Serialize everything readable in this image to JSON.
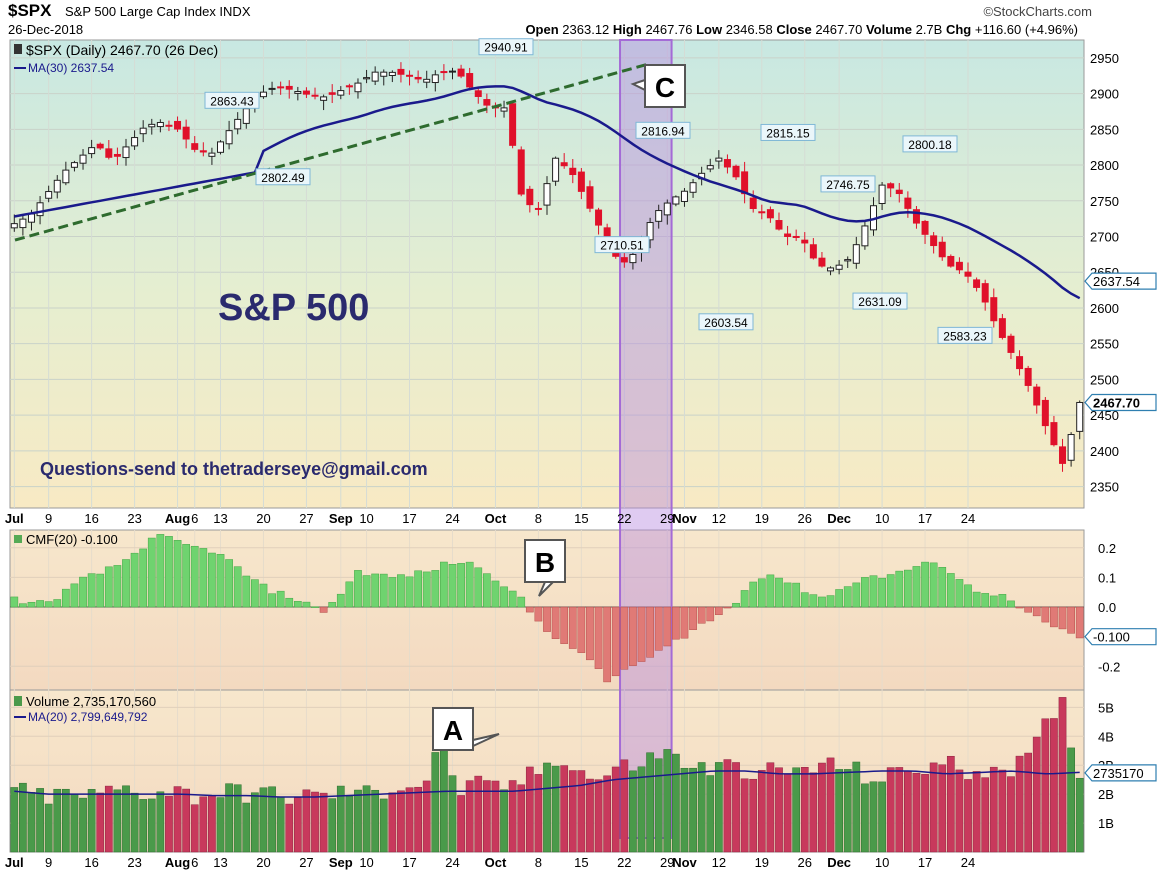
{
  "header": {
    "symbol": "$SPX",
    "name": "S&P 500 Large Cap Index INDX",
    "brand": "©StockCharts.com",
    "date": "26-Dec-2018",
    "open_label": "Open",
    "open": "2363.12",
    "high_label": "High",
    "high": "2467.76",
    "low_label": "Low",
    "low": "2346.58",
    "close_label": "Close",
    "close": "2467.70",
    "volume_label": "Volume",
    "volume": "2.7B",
    "chg_label": "Chg",
    "chg": "+116.60 (+4.96%)"
  },
  "annotations": {
    "big_title": "S&P 500",
    "contact": "Questions-send to thetraderseye@gmail.com",
    "label_a": "A",
    "label_b": "B",
    "label_c": "C"
  },
  "chart_data": [
    {
      "type": "candlestick",
      "legend": [
        "$SPX (Daily) 2467.70 (26 Dec)",
        "MA(30) 2637.54"
      ],
      "ylim": [
        2320,
        2975
      ],
      "y_ticks": [
        2350,
        2400,
        2450,
        2500,
        2550,
        2600,
        2650,
        2700,
        2750,
        2800,
        2850,
        2900,
        2950
      ],
      "x_tick_labels": [
        "Jul",
        "9",
        "16",
        "23",
        "Aug",
        "6",
        "13",
        "20",
        "27",
        "Sep",
        "10",
        "17",
        "24",
        "Oct",
        "8",
        "15",
        "22",
        "29",
        "Nov",
        "12",
        "19",
        "26",
        "Dec",
        "10",
        "17",
        "24"
      ],
      "last_price_tag": "2467.70",
      "ma_tag": "2637.54",
      "price_labels": [
        {
          "text": "2863.43",
          "value": 2863.43
        },
        {
          "text": "2802.49",
          "value": 2802.49
        },
        {
          "text": "2940.91",
          "value": 2940.91
        },
        {
          "text": "2710.51",
          "value": 2710.51
        },
        {
          "text": "2816.94",
          "value": 2816.94
        },
        {
          "text": "2603.54",
          "value": 2603.54
        },
        {
          "text": "2815.15",
          "value": 2815.15
        },
        {
          "text": "2746.75",
          "value": 2746.75
        },
        {
          "text": "2631.09",
          "value": 2631.09
        },
        {
          "text": "2800.18",
          "value": 2800.18
        },
        {
          "text": "2583.23",
          "value": 2583.23
        }
      ],
      "close_anchors": [
        2718,
        2730,
        2760,
        2790,
        2810,
        2830,
        2805,
        2830,
        2855,
        2860,
        2850,
        2822,
        2815,
        2845,
        2875,
        2900,
        2910,
        2905,
        2898,
        2895,
        2905,
        2915,
        2930,
        2930,
        2925,
        2918,
        2930,
        2932,
        2903,
        2880,
        2880,
        2750,
        2738,
        2810,
        2790,
        2745,
        2700,
        2660,
        2680,
        2730,
        2750,
        2765,
        2790,
        2810,
        2785,
        2740,
        2730,
        2700,
        2700,
        2660,
        2655,
        2670,
        2720,
        2775,
        2760,
        2720,
        2690,
        2660,
        2650,
        2620,
        2570,
        2530,
        2485,
        2430,
        2380,
        2470
      ]
    },
    {
      "type": "bar",
      "legend": [
        "CMF(20) -0.100"
      ],
      "ylim": [
        -0.28,
        0.26
      ],
      "y_ticks": [
        -0.2,
        0.0,
        0.1,
        0.2
      ],
      "y_tick_labels": [
        "-0.2",
        "0.0",
        "0.1",
        "0.2"
      ],
      "last_value_tag": "-0.100",
      "anchors": [
        0.03,
        0.01,
        0.02,
        0.06,
        0.1,
        0.12,
        0.15,
        0.2,
        0.24,
        0.22,
        0.2,
        0.19,
        0.15,
        0.1,
        0.06,
        0.04,
        0.02,
        -0.02,
        0.04,
        0.12,
        0.11,
        0.1,
        0.11,
        0.12,
        0.15,
        0.15,
        0.13,
        0.08,
        0.03,
        -0.05,
        -0.1,
        -0.15,
        -0.18,
        -0.26,
        -0.2,
        -0.18,
        -0.14,
        -0.1,
        -0.06,
        -0.03,
        0.02,
        0.1,
        0.11,
        0.08,
        0.05,
        0.03,
        0.07,
        0.1,
        0.1,
        0.12,
        0.13,
        0.16,
        0.11,
        0.06,
        0.05,
        0.03,
        -0.02,
        -0.05,
        -0.08,
        -0.1
      ]
    },
    {
      "type": "bar",
      "legend": [
        "Volume 2,735,170,560",
        "MA(20) 2,799,649,792"
      ],
      "ylim": [
        0,
        5.6
      ],
      "y_ticks": [
        1,
        2,
        3,
        4,
        5
      ],
      "y_tick_labels": [
        "1B",
        "2B",
        "3B",
        "4B",
        "5B"
      ],
      "last_value_tag": "2735170",
      "volume_anchors": [
        2.1,
        2.0,
        1.9,
        2.0,
        1.9,
        2.0,
        2.2,
        2.1,
        2.0,
        2.2,
        1.9,
        2.0,
        2.1,
        2.0,
        2.1,
        1.8,
        2.0,
        1.9,
        2.0,
        2.1,
        2.0,
        2.1,
        2.4,
        2.2,
        3.9,
        2.1,
        2.3,
        2.2,
        2.3,
        2.6,
        3.0,
        3.3,
        2.7,
        2.5,
        2.9,
        3.0,
        3.3,
        3.4,
        3.0,
        2.8,
        3.0,
        2.8,
        2.9,
        2.7,
        2.8,
        2.9,
        3.0,
        2.9,
        2.6,
        2.5,
        2.8,
        2.9,
        3.0,
        3.0,
        2.7,
        3.0,
        2.9,
        3.1,
        4.2,
        5.2,
        2.7
      ],
      "ma_anchors": [
        2.1,
        2.0,
        2.0,
        2.0,
        2.0,
        2.0,
        1.95,
        1.95,
        1.9,
        1.9,
        1.95,
        2.0,
        2.05,
        2.1,
        2.1,
        2.1,
        2.2,
        2.3,
        2.5,
        2.6,
        2.7,
        2.8,
        2.8,
        2.7,
        2.7,
        2.75,
        2.8,
        2.8,
        2.7,
        2.75,
        2.8,
        2.7,
        2.75
      ]
    }
  ]
}
